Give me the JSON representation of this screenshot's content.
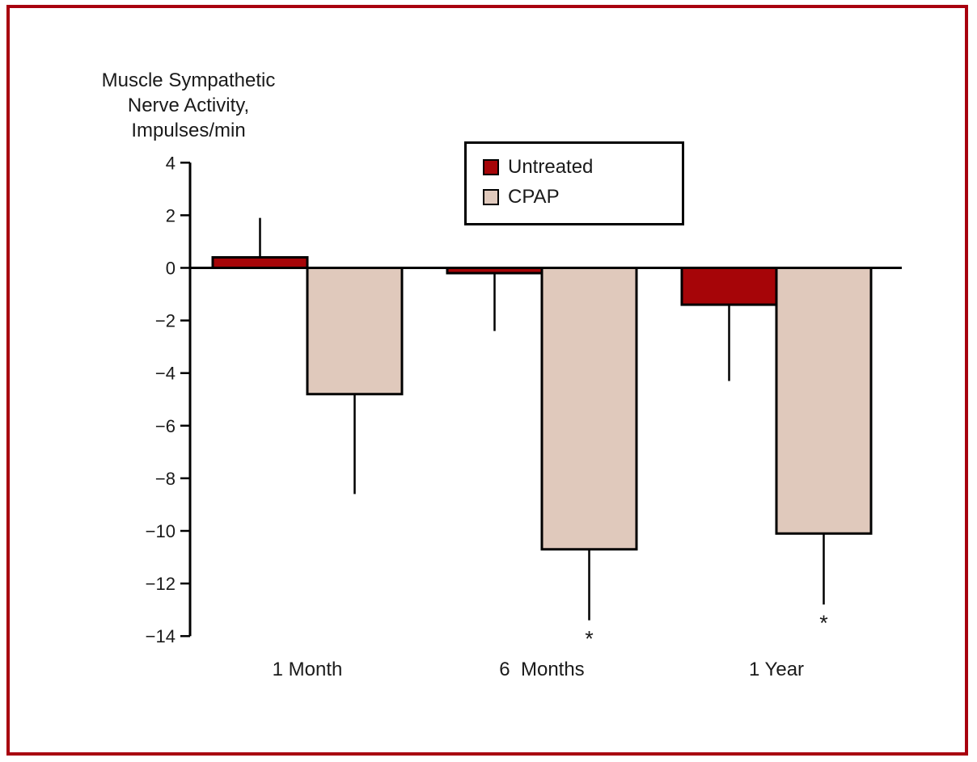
{
  "frame": {
    "border_color": "#a8000f",
    "background_color": "#ffffff"
  },
  "ylabel_lines": [
    "Muscle Sympathetic",
    "Nerve Activity,",
    "Impulses/min"
  ],
  "legend": {
    "items": [
      {
        "label": "Untreated",
        "color": "#a60508"
      },
      {
        "label": "CPAP",
        "color": "#e0c9bc"
      }
    ]
  },
  "chart_data": {
    "type": "bar",
    "title": "",
    "ylabel": "Muscle Sympathetic Nerve Activity, Impulses/min",
    "xlabel": "",
    "categories": [
      "1 Month",
      "6  Months",
      "1 Year"
    ],
    "series": [
      {
        "name": "Untreated",
        "color": "#a60508",
        "values": [
          0.4,
          -0.2,
          -1.4
        ],
        "errors": [
          1.5,
          2.2,
          2.9
        ],
        "significant": [
          false,
          false,
          false
        ]
      },
      {
        "name": "CPAP",
        "color": "#e0c9bc",
        "values": [
          -4.8,
          -10.7,
          -10.1
        ],
        "errors": [
          3.8,
          2.7,
          2.7
        ],
        "significant": [
          false,
          true,
          true
        ]
      }
    ],
    "ylim": [
      -14,
      4
    ],
    "ytick_step": 2,
    "yticks": [
      4,
      2,
      0,
      -2,
      -4,
      -6,
      -8,
      -10,
      -12,
      -14
    ],
    "grid": false,
    "legend_position": "top-center",
    "error_bar_style": "single-sided-away-from-zero",
    "significance_marker": "*",
    "axis_color": "#000000",
    "bar_outline_color": "#000000"
  }
}
